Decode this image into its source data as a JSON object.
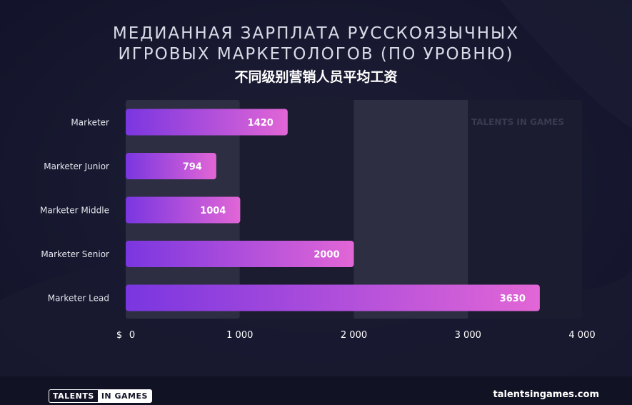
{
  "title_line_1": "МЕДИАННАЯ ЗАРПЛАТА РУССКОЯЗЫЧНЫХ",
  "title_line_2": "ИГРОВЫХ МАРКЕТОЛОГОВ (ПО УРОВНЮ)",
  "subtitle": "不同级别营销人员平均工资",
  "watermark": "TALENTS IN GAMES",
  "footer": {
    "logo_left": "TALENTS",
    "logo_right": "IN GAMES",
    "site": "talentsingames.com"
  },
  "colors": {
    "background": "#15162a",
    "bar_start": "#7a36e0",
    "bar_end": "#e266d6",
    "plot_band_light": "#2d2e42",
    "plot_band_dark": "#1b1c30"
  },
  "chart_data": {
    "type": "bar",
    "orientation": "horizontal",
    "categories": [
      "Marketer",
      "Marketer Junior",
      "Marketer Middle",
      "Marketer Senior",
      "Marketer Lead"
    ],
    "values": [
      1420,
      794,
      1004,
      2000,
      3630
    ],
    "value_labels": [
      "1420",
      "794",
      "1004",
      "2000",
      "3630"
    ],
    "xlim": [
      0,
      4000
    ],
    "x_ticks": [
      0,
      1000,
      2000,
      3000,
      4000
    ],
    "x_tick_labels": [
      "0",
      "1 000",
      "2 000",
      "3 000",
      "4 000"
    ],
    "x_unit_label": "$",
    "grid": false
  }
}
